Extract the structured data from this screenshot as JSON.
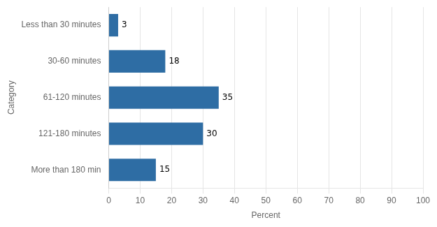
{
  "chart_data": {
    "type": "bar",
    "orientation": "horizontal",
    "categories": [
      "Less than 30 minutes",
      "30-60 minutes",
      "61-120 minutes",
      "121-180 minutes",
      "More than 180 min"
    ],
    "values": [
      3,
      18,
      35,
      30,
      15
    ],
    "color": "#2E6DA4",
    "xlabel": "Percent",
    "ylabel": "Category",
    "xlim": [
      0,
      100
    ],
    "xticks": [
      0,
      10,
      20,
      30,
      40,
      50,
      60,
      70,
      80,
      90,
      100
    ],
    "grid": true,
    "data_labels": true
  }
}
